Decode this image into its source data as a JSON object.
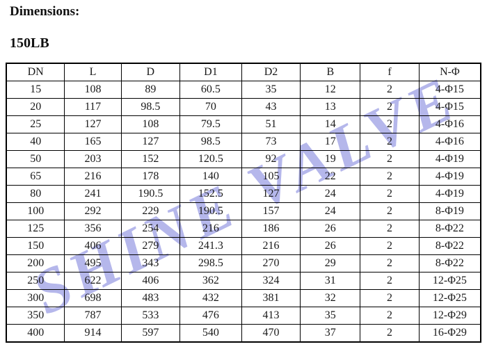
{
  "page": {
    "title": "Dimensions:",
    "subtitle": "150LB"
  },
  "watermark": {
    "text": "SHINE VALVE",
    "color": "#a9abe8"
  },
  "table": {
    "columns": [
      "DN",
      "L",
      "D",
      "D1",
      "D2",
      "B",
      "f",
      "N-Φ"
    ],
    "rows": [
      [
        "15",
        "108",
        "89",
        "60.5",
        "35",
        "12",
        "2",
        "4-Φ15"
      ],
      [
        "20",
        "117",
        "98.5",
        "70",
        "43",
        "13",
        "2",
        "4-Φ15"
      ],
      [
        "25",
        "127",
        "108",
        "79.5",
        "51",
        "14",
        "2",
        "4-Φ16"
      ],
      [
        "40",
        "165",
        "127",
        "98.5",
        "73",
        "17",
        "2",
        "4-Φ16"
      ],
      [
        "50",
        "203",
        "152",
        "120.5",
        "92",
        "19",
        "2",
        "4-Φ19"
      ],
      [
        "65",
        "216",
        "178",
        "140",
        "105",
        "22",
        "2",
        "4-Φ19"
      ],
      [
        "80",
        "241",
        "190.5",
        "152.5",
        "127",
        "24",
        "2",
        "4-Φ19"
      ],
      [
        "100",
        "292",
        "229",
        "190.5",
        "157",
        "24",
        "2",
        "8-Φ19"
      ],
      [
        "125",
        "356",
        "254",
        "216",
        "186",
        "26",
        "2",
        "8-Φ22"
      ],
      [
        "150",
        "406",
        "279",
        "241.3",
        "216",
        "26",
        "2",
        "8-Φ22"
      ],
      [
        "200",
        "495",
        "343",
        "298.5",
        "270",
        "29",
        "2",
        "8-Φ22"
      ],
      [
        "250",
        "622",
        "406",
        "362",
        "324",
        "31",
        "2",
        "12-Φ25"
      ],
      [
        "300",
        "698",
        "483",
        "432",
        "381",
        "32",
        "2",
        "12-Φ25"
      ],
      [
        "350",
        "787",
        "533",
        "476",
        "413",
        "35",
        "2",
        "12-Φ29"
      ],
      [
        "400",
        "914",
        "597",
        "540",
        "470",
        "37",
        "2",
        "16-Φ29"
      ]
    ],
    "column_widths": [
      "12.3%",
      "11.9%",
      "12.4%",
      "13.0%",
      "12.4%",
      "12.6%",
      "12.4%",
      "13.0%"
    ]
  }
}
